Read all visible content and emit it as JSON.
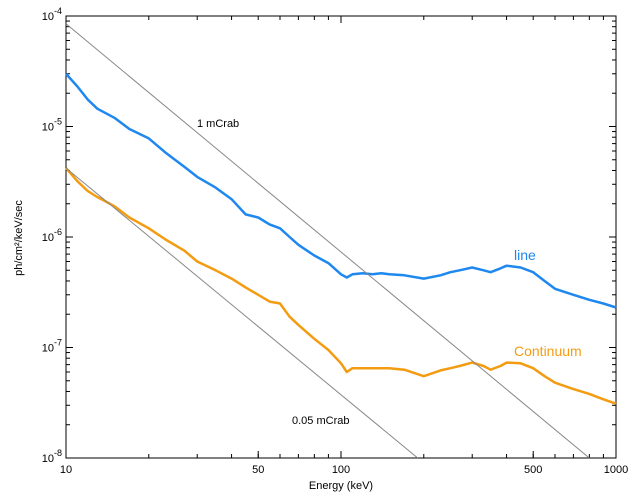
{
  "chart_data": {
    "type": "line",
    "xlabel": "Energy (keV)",
    "ylabel": "ph/cm²/keV/sec",
    "xscale": "log",
    "yscale": "log",
    "xlim": [
      10,
      1000
    ],
    "ylim": [
      1e-08,
      0.0001
    ],
    "x_ticks": [
      {
        "value": 10,
        "label": "10"
      },
      {
        "value": 50,
        "label": "50"
      },
      {
        "value": 100,
        "label": "100"
      },
      {
        "value": 500,
        "label": "500"
      },
      {
        "value": 1000,
        "label": "1000"
      }
    ],
    "y_ticks": [
      {
        "value": 1e-08,
        "base": "10",
        "exp": "-8"
      },
      {
        "value": 1e-07,
        "base": "10",
        "exp": "-7"
      },
      {
        "value": 1e-06,
        "base": "10",
        "exp": "-6"
      },
      {
        "value": 1e-05,
        "base": "10",
        "exp": "-5"
      },
      {
        "value": 0.0001,
        "base": "10",
        "exp": "-4"
      }
    ],
    "grid": false,
    "series": [
      {
        "name": "line",
        "color": "#1e88ee",
        "x": [
          10,
          11,
          12,
          13,
          15,
          17,
          20,
          23,
          27,
          30,
          35,
          40,
          45,
          50,
          55,
          60,
          65,
          70,
          80,
          90,
          100,
          105,
          110,
          120,
          130,
          140,
          150,
          170,
          200,
          230,
          250,
          270,
          300,
          330,
          350,
          380,
          400,
          450,
          500,
          550,
          600,
          700,
          800,
          900,
          1000
        ],
        "y": [
          3e-05,
          2.3e-05,
          1.75e-05,
          1.45e-05,
          1.2e-05,
          9.5e-06,
          7.8e-06,
          5.8e-06,
          4.3e-06,
          3.5e-06,
          2.8e-06,
          2.2e-06,
          1.6e-06,
          1.5e-06,
          1.3e-06,
          1.2e-06,
          1e-06,
          8.5e-07,
          6.8e-07,
          5.8e-07,
          4.6e-07,
          4.3e-07,
          4.6e-07,
          4.7e-07,
          4.6e-07,
          4.7e-07,
          4.6e-07,
          4.5e-07,
          4.2e-07,
          4.5e-07,
          4.8e-07,
          5e-07,
          5.3e-07,
          5e-07,
          4.8e-07,
          5.2e-07,
          5.5e-07,
          5.3e-07,
          4.8e-07,
          4e-07,
          3.4e-07,
          3e-07,
          2.7e-07,
          2.5e-07,
          2.3e-07
        ]
      },
      {
        "name": "Continuum",
        "color": "#f39c12",
        "x": [
          10,
          11,
          12,
          13,
          15,
          17,
          20,
          23,
          27,
          30,
          35,
          40,
          45,
          50,
          55,
          60,
          65,
          70,
          80,
          90,
          100,
          105,
          110,
          120,
          130,
          140,
          150,
          170,
          200,
          230,
          250,
          270,
          300,
          330,
          350,
          380,
          400,
          450,
          500,
          550,
          600,
          700,
          800,
          900,
          1000
        ],
        "y": [
          4.2e-06,
          3.2e-06,
          2.6e-06,
          2.3e-06,
          1.9e-06,
          1.5e-06,
          1.2e-06,
          9.5e-07,
          7.5e-07,
          6e-07,
          5e-07,
          4.2e-07,
          3.5e-07,
          3e-07,
          2.6e-07,
          2.5e-07,
          1.9e-07,
          1.6e-07,
          1.2e-07,
          9.5e-08,
          7.2e-08,
          6e-08,
          6.5e-08,
          6.5e-08,
          6.5e-08,
          6.5e-08,
          6.5e-08,
          6.3e-08,
          5.5e-08,
          6.2e-08,
          6.5e-08,
          6.8e-08,
          7.3e-08,
          6.8e-08,
          6.3e-08,
          6.8e-08,
          7.3e-08,
          7.2e-08,
          6.5e-08,
          5.5e-08,
          4.8e-08,
          4.2e-08,
          3.8e-08,
          3.4e-08,
          3.1e-08
        ]
      },
      {
        "name": "1 mCrab",
        "color": "#888888",
        "x": [
          10,
          800
        ],
        "y": [
          8.5e-05,
          1e-08
        ]
      },
      {
        "name": "0.05 mCrab",
        "color": "#888888",
        "x": [
          10,
          190
        ],
        "y": [
          4.2e-06,
          1e-08
        ]
      }
    ],
    "annotations": [
      {
        "text": "1 mCrab",
        "color": "#000000"
      },
      {
        "text": "0.05 mCrab",
        "color": "#000000"
      },
      {
        "text": "line",
        "color": "#1e88ee"
      },
      {
        "text": "Continuum",
        "color": "#f39c12"
      }
    ]
  }
}
